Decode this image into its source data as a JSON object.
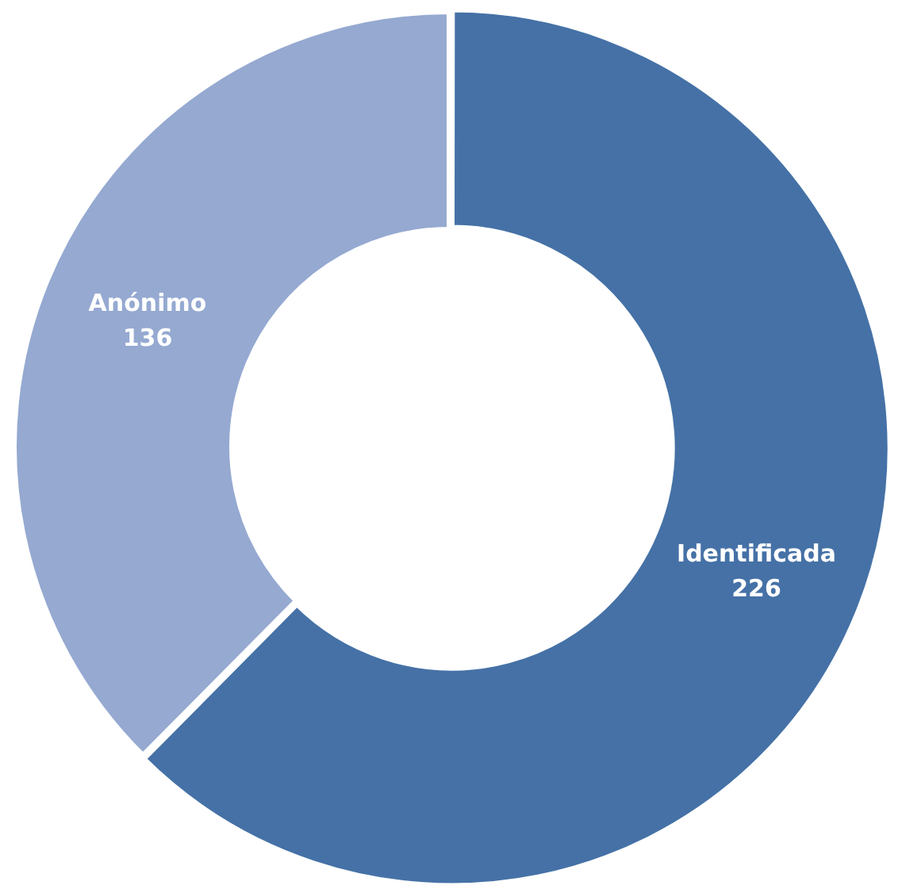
{
  "chart_data": {
    "type": "donut",
    "categories": [
      "Identificada",
      "Anónimo"
    ],
    "values": [
      226,
      136
    ],
    "colors": [
      "#4571a6",
      "#95a9d1"
    ],
    "data_labels": true,
    "legend": false
  }
}
